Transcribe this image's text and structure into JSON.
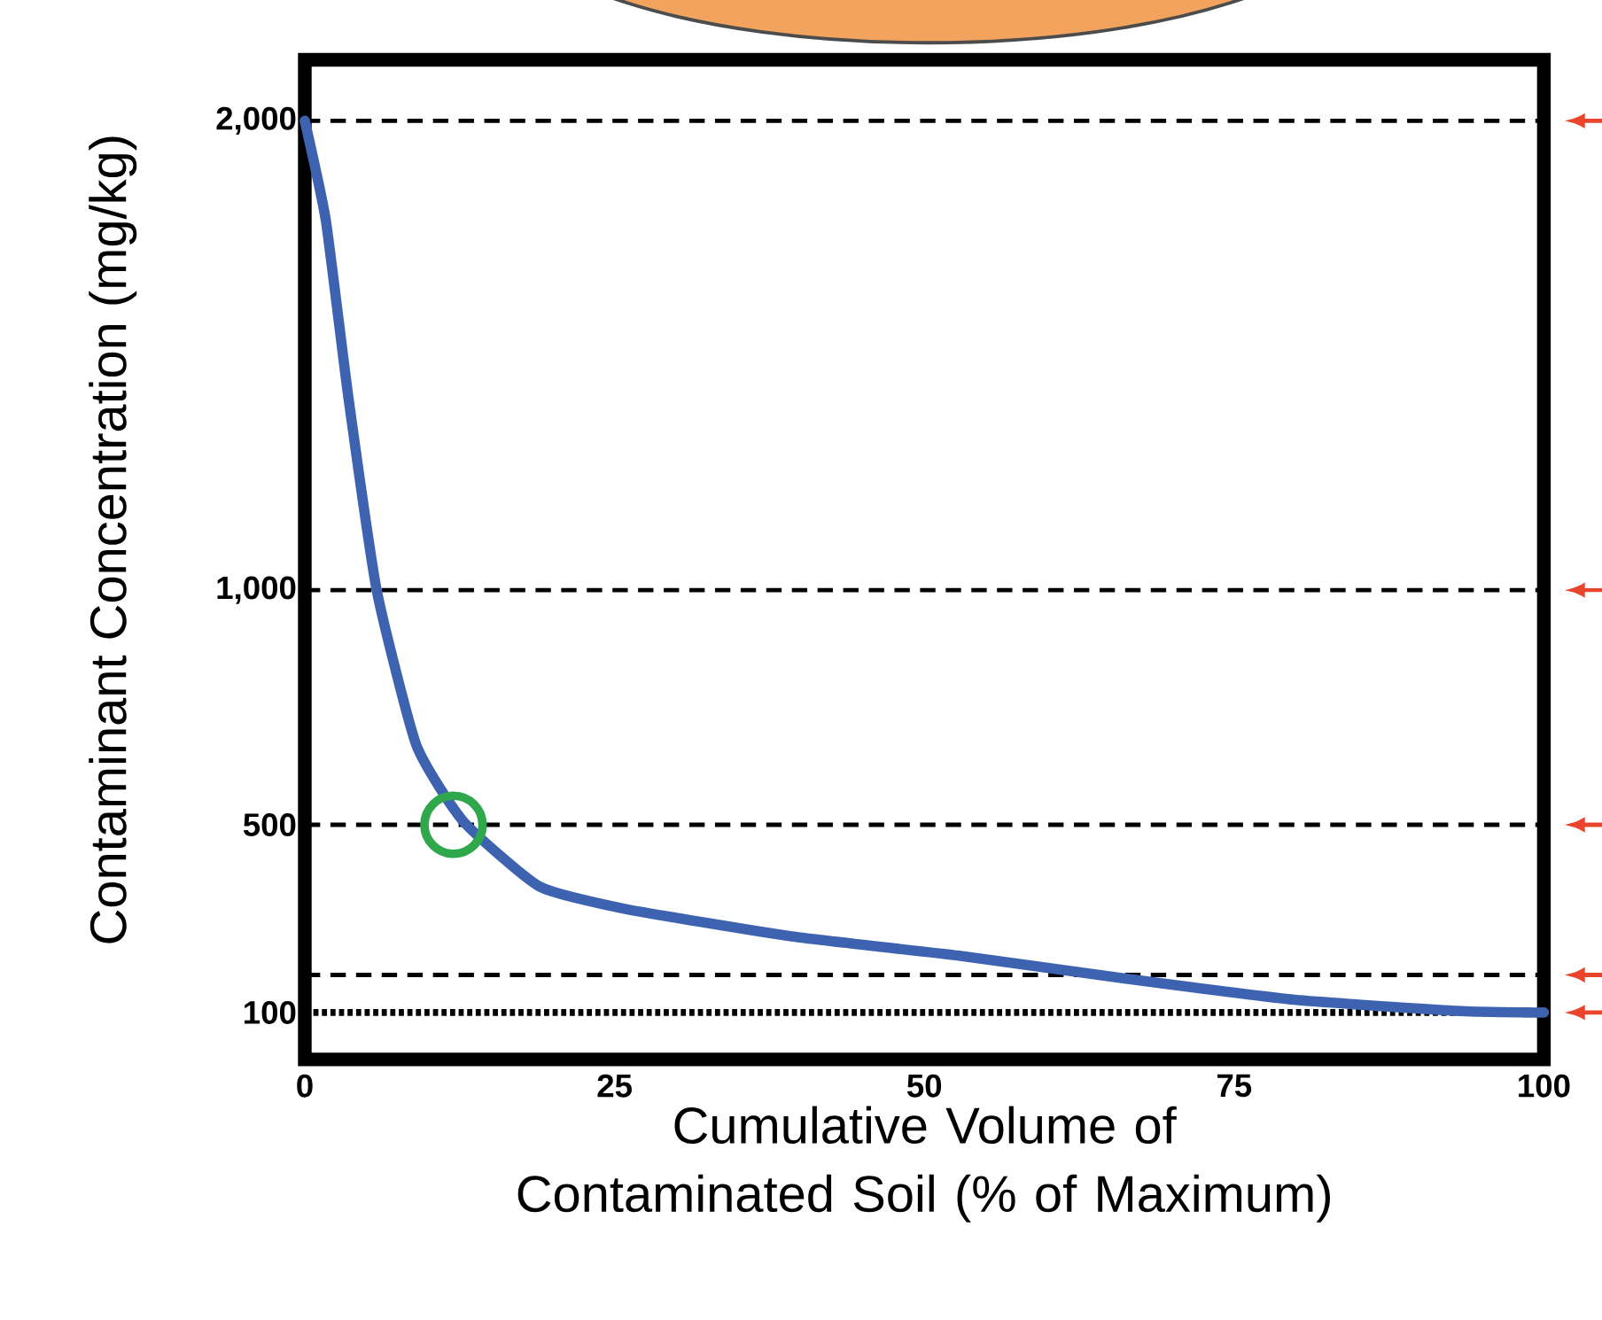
{
  "chart_data": {
    "type": "line",
    "xlabel": "Cumulative Volume of Contaminated Soil (% of Maximum)",
    "ylabel": "Contaminant Concentration (mg/kg)",
    "xlim": [
      0,
      100
    ],
    "ylim": [
      0,
      2130
    ],
    "xticks": [
      0,
      25,
      50,
      75,
      100
    ],
    "yticks": [
      {
        "value": 100,
        "label": "100"
      },
      {
        "value": 500,
        "label": "500"
      },
      {
        "value": 1000,
        "label": "1,000"
      },
      {
        "value": 2000,
        "label": "2,000"
      }
    ],
    "series": [
      {
        "color": "#3d63b0",
        "x": [
          0,
          1.7,
          3.5,
          5.8,
          9.0,
          12.8,
          18.9,
          25.8,
          39.3,
          52.8,
          66.3,
          79.9,
          93.3,
          98.6,
          100
        ],
        "values": [
          2000,
          1787,
          1414,
          1000,
          670,
          507,
          369,
          321,
          262,
          221,
          172,
          127,
          103,
          100,
          100
        ]
      },
      {
        "type": "scatter",
        "color": "#2ea84a",
        "marker": "circle",
        "x": [
          12
        ],
        "values": [
          500
        ]
      }
    ],
    "ref_lines": [
      {
        "axis": "y",
        "value": 2000,
        "color": "#000000",
        "line_style": "dashed"
      },
      {
        "axis": "y",
        "value": 1000,
        "color": "#000000",
        "line_style": "dashed"
      },
      {
        "axis": "y",
        "value": 500,
        "color": "#000000",
        "line_style": "dashed"
      },
      {
        "axis": "y",
        "value": 180,
        "color": "#000000",
        "line_style": "dashed"
      },
      {
        "axis": "y",
        "value": 100,
        "color": "#000000",
        "line_style": "dotted"
      }
    ]
  }
}
